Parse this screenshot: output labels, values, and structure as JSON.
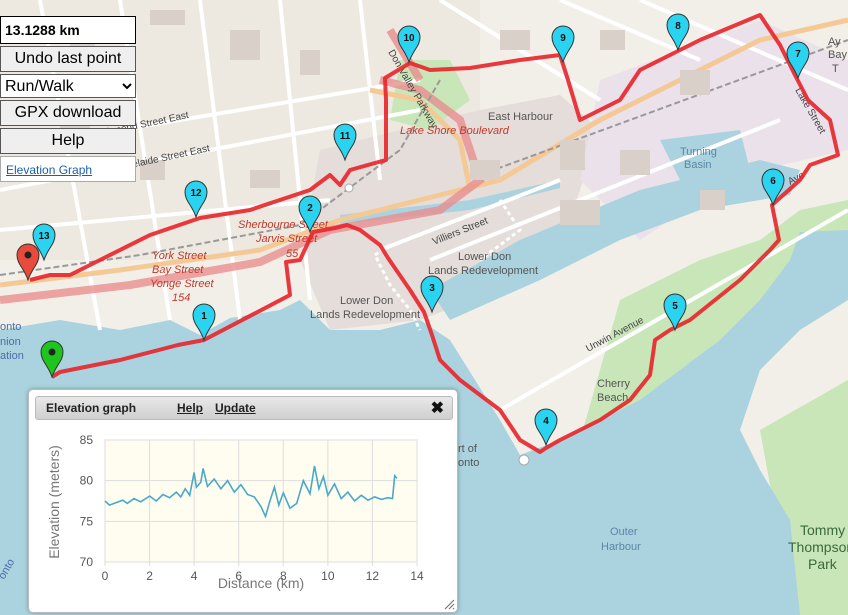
{
  "controls": {
    "distance": "13.1288 km",
    "undo_label": "Undo last point",
    "mode_selected": "Run/Walk",
    "gpx_label": "GPX download",
    "help_label": "Help",
    "elevation_link": "Elevation Graph"
  },
  "map": {
    "labels": {
      "richmond": "Richmond Street East",
      "adelaide": "Adelaide Street East",
      "don_valley": "Don Valley Parkway",
      "lake_shore": "Lake Shore Boulevard",
      "east_harbour": "East Harbour",
      "villiers": "Villiers Street",
      "lower_don_1a": "Lower Don",
      "lower_don_1b": "Lands Redevelopment",
      "lower_don_2a": "Lower Don",
      "lower_don_2b": "Lands Redevelopment",
      "turning_a": "Turning",
      "turning_b": "Basin",
      "unwin": "Unwin Avenue",
      "cherry_a": "Cherry",
      "cherry_b": "Beach",
      "outer_a": "Outer",
      "outer_b": "Harbour",
      "tommy_a": "Tommy",
      "tommy_b": "Thompson",
      "tommy_c": "Park",
      "sherbourne": "Sherbourne Street",
      "jarvis": "Jarvis Street",
      "n55": "55",
      "york": "York Street",
      "bay": "Bay Street",
      "yonge": "Yonge Street",
      "n154": "154",
      "port_a": "rt of",
      "port_b": "onto",
      "ay": "Ay",
      "bay2": "Bay",
      "ts": "T",
      "onto_a": "onto",
      "onto_b": "nion",
      "onto_c": "ation",
      "lake_st": "Lake Street",
      "leslie": "Ave",
      "onto_d": "onto"
    },
    "markers": [
      "1",
      "2",
      "3",
      "4",
      "5",
      "6",
      "7",
      "8",
      "9",
      "10",
      "11",
      "12",
      "13"
    ],
    "route_color": "#e8232a",
    "marker_color": "#2ad4f0",
    "start_marker_color": "#1fc41f",
    "end_marker_color": "#e84a3c"
  },
  "elevation": {
    "title": "Elevation graph",
    "help": "Help",
    "update": "Update",
    "close": "✖"
  },
  "chart_data": {
    "type": "line",
    "xlabel": "Distance (km)",
    "ylabel": "Elevation (meters)",
    "xlim": [
      0,
      14
    ],
    "ylim": [
      70,
      85
    ],
    "xticks": [
      "0",
      "2",
      "4",
      "6",
      "8",
      "10",
      "12",
      "14"
    ],
    "yticks": [
      "70",
      "75",
      "80",
      "85"
    ],
    "grid": true,
    "series": [
      {
        "color": "#4aa8c8",
        "x": [
          0,
          0.2,
          0.5,
          0.8,
          1.0,
          1.3,
          1.6,
          2.0,
          2.3,
          2.6,
          2.9,
          3.2,
          3.4,
          3.6,
          3.8,
          4.0,
          4.1,
          4.3,
          4.4,
          4.6,
          4.9,
          5.2,
          5.5,
          5.8,
          6.1,
          6.4,
          6.7,
          7.0,
          7.2,
          7.4,
          7.6,
          7.8,
          8.0,
          8.3,
          8.6,
          8.9,
          9.2,
          9.4,
          9.6,
          9.8,
          10.0,
          10.3,
          10.6,
          10.9,
          11.2,
          11.5,
          11.8,
          12.1,
          12.4,
          12.7,
          12.9,
          13.0,
          13.1
        ],
        "y": [
          77.5,
          77.0,
          77.3,
          77.6,
          77.2,
          77.8,
          77.4,
          78.1,
          77.5,
          78.3,
          77.9,
          78.6,
          78.0,
          79.0,
          78.2,
          81.0,
          79.2,
          79.8,
          81.5,
          79.3,
          80.2,
          79.0,
          80.0,
          78.6,
          79.5,
          78.3,
          78.0,
          76.8,
          75.6,
          77.5,
          79.2,
          77.0,
          78.5,
          76.6,
          77.2,
          80.0,
          78.4,
          81.8,
          79.0,
          80.5,
          78.2,
          79.6,
          77.8,
          78.6,
          77.5,
          78.2,
          77.6,
          78.0,
          77.7,
          77.9,
          77.8,
          80.6,
          80.3
        ]
      }
    ]
  }
}
